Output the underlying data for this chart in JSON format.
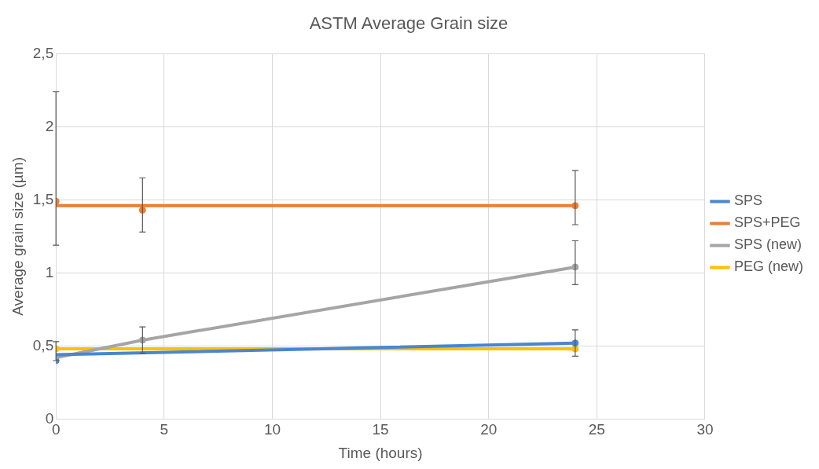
{
  "chart_data": {
    "type": "line",
    "title": "ASTM Average Grain size",
    "xlabel": "Time (hours)",
    "ylabel": "Average grain size (µm)",
    "xlim": [
      0,
      30
    ],
    "xticks": [
      0,
      5,
      10,
      15,
      20,
      25,
      30
    ],
    "ylim": [
      0,
      2.5
    ],
    "yticks": [
      0,
      {
        "value": 0.5,
        "label": "0,5"
      },
      1,
      {
        "value": 1.5,
        "label": "1,5"
      },
      2,
      {
        "value": 2.5,
        "label": "2,5"
      }
    ],
    "grid": true,
    "legend": "right",
    "line_style": "solid",
    "series": [
      {
        "name": "SPS",
        "type": "line",
        "marker": "none",
        "color": "#4a86d0",
        "x": [
          0,
          24
        ],
        "values": [
          0.44,
          0.52
        ]
      },
      {
        "name": "SPS+PEG",
        "type": "line",
        "marker": "none",
        "color": "#ed7d31",
        "x": [
          0,
          24
        ],
        "values": [
          1.46,
          1.46
        ]
      },
      {
        "name": "SPS (new)",
        "type": "line",
        "marker": "none",
        "color": "#a5a5a5",
        "x": [
          0,
          4,
          24
        ],
        "values": [
          0.42,
          0.54,
          1.04
        ]
      },
      {
        "name": "PEG (new)",
        "type": "line",
        "marker": "none",
        "color": "#ffc000",
        "x": [
          0,
          24
        ],
        "values": [
          0.48,
          0.48
        ]
      },
      {
        "type": "scatter",
        "marker": "circle",
        "color": "#4a86d0",
        "x": [
          0,
          24
        ],
        "values": [
          0.4,
          0.52
        ],
        "errors": [
          [
            0.4,
            0.53
          ],
          0.09
        ]
      },
      {
        "type": "scatter",
        "marker": "circle",
        "color": "#ed7d31",
        "x": [
          0,
          4,
          24
        ],
        "values": [
          1.49,
          1.43,
          1.46
        ],
        "errors": [
          [
            1.19,
            2.24
          ],
          [
            1.28,
            1.65
          ],
          [
            1.33,
            1.7
          ]
        ]
      },
      {
        "type": "scatter",
        "marker": "circle",
        "color": "#a5a5a5",
        "x": [
          4,
          24
        ],
        "values": [
          0.54,
          1.04
        ],
        "errors": [
          0.09,
          [
            0.92,
            1.22
          ]
        ]
      },
      {
        "type": "scatter",
        "marker": "circle",
        "color": "#ffc000",
        "x": [
          0,
          24
        ],
        "values": [
          0.48,
          0.48
        ]
      }
    ]
  }
}
